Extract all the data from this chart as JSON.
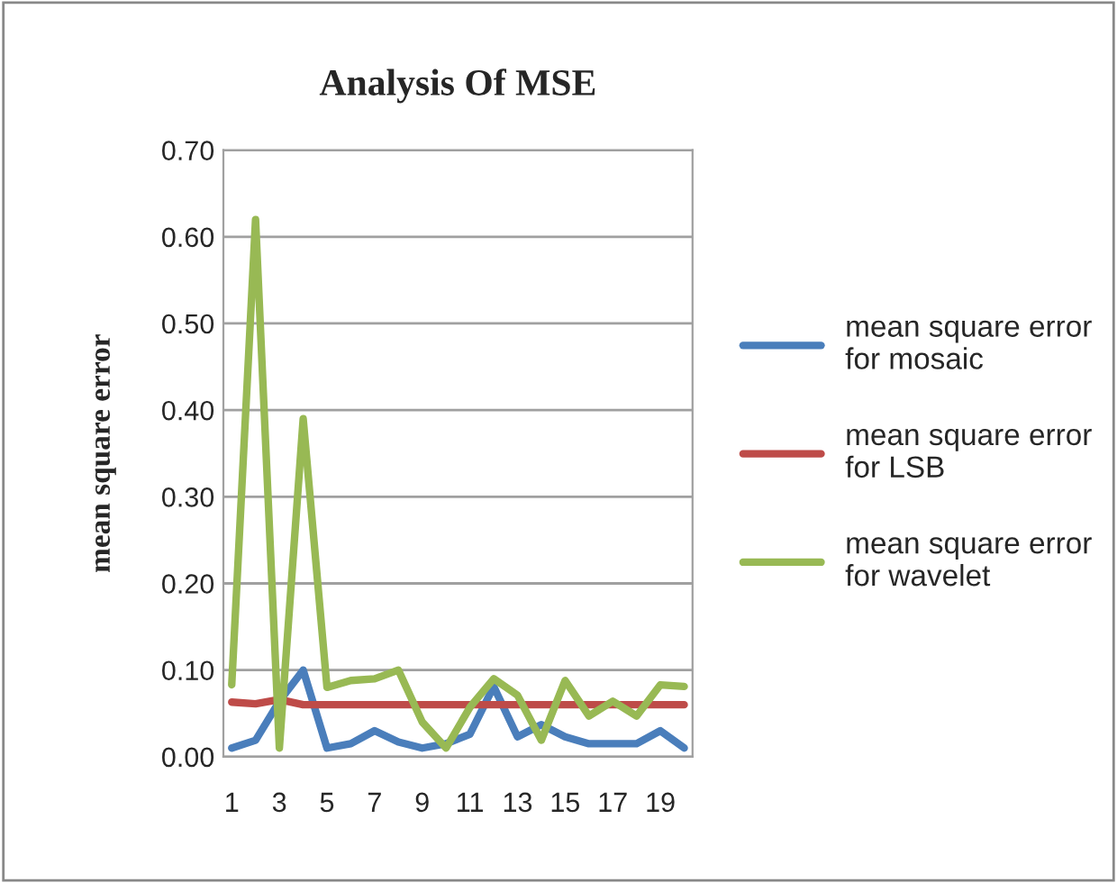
{
  "chart_data": {
    "type": "line",
    "title": "Analysis Of MSE",
    "ylabel": "mean square error",
    "categories": [
      "1",
      null,
      "3",
      null,
      "5",
      null,
      "7",
      null,
      "9",
      null,
      "11",
      null,
      "13",
      null,
      "15",
      null,
      "17",
      null,
      "19",
      null
    ],
    "series": [
      {
        "name": "mean square error for mosaic",
        "color": "#4a7ebb",
        "values": [
          0.01,
          0.019,
          0.064,
          0.1,
          0.01,
          0.015,
          0.03,
          0.017,
          0.01,
          0.015,
          0.026,
          0.081,
          0.023,
          0.037,
          0.023,
          0.015,
          0.015,
          0.015,
          0.03,
          0.01
        ]
      },
      {
        "name": "mean square error for LSB",
        "color": "#be4b48",
        "values": [
          0.063,
          0.061,
          0.066,
          0.06,
          0.06,
          0.06,
          0.06,
          0.06,
          0.06,
          0.06,
          0.06,
          0.06,
          0.06,
          0.06,
          0.06,
          0.06,
          0.06,
          0.06,
          0.06,
          0.06
        ]
      },
      {
        "name": "mean square error for wavelet",
        "color": "#98b954",
        "values": [
          0.083,
          0.62,
          0.01,
          0.39,
          0.08,
          0.088,
          0.09,
          0.1,
          0.04,
          0.01,
          0.057,
          0.09,
          0.071,
          0.019,
          0.088,
          0.047,
          0.064,
          0.047,
          0.083,
          0.081
        ]
      }
    ],
    "ylim": [
      0,
      0.7
    ],
    "yticks": [
      {
        "value": 0,
        "label": "0.00"
      },
      {
        "value": 0.1,
        "label": "0.10"
      },
      {
        "value": 0.2,
        "label": "0.20"
      },
      {
        "value": 0.3,
        "label": "0.30"
      },
      {
        "value": 0.4,
        "label": "0.40"
      },
      {
        "value": 0.5,
        "label": "0.50"
      },
      {
        "value": 0.6,
        "label": "0.60"
      },
      {
        "value": 0.7,
        "label": "0.70"
      }
    ],
    "grid": "y",
    "legend": "right",
    "marker": "none",
    "line_style": "solid"
  }
}
